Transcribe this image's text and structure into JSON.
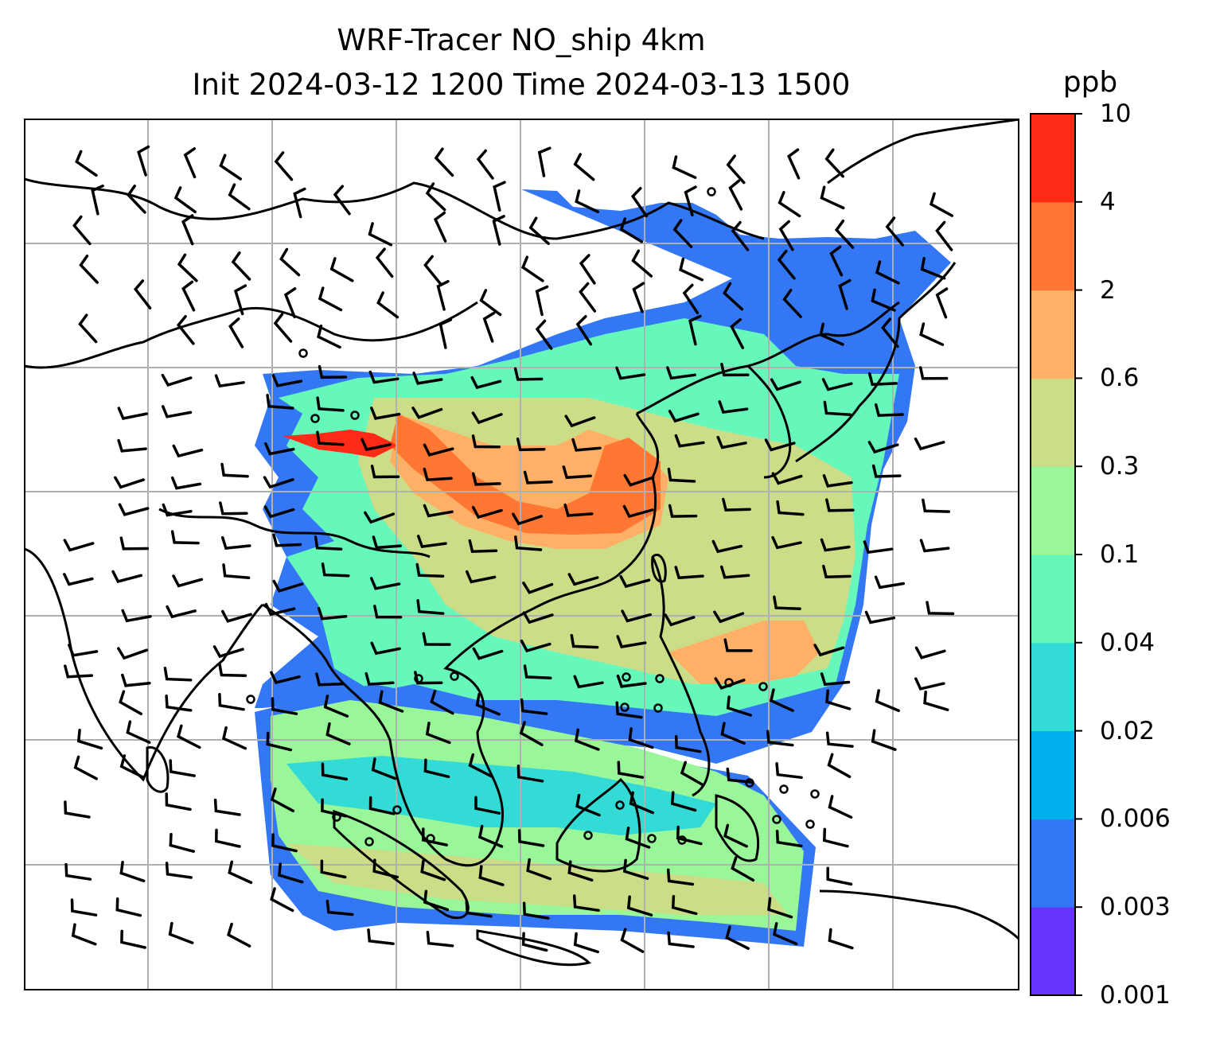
{
  "title": {
    "line1": "WRF-Tracer NO_ship 4km",
    "line2": "Init 2024-03-12 1200 Time 2024-03-13 1500"
  },
  "colorbar": {
    "unit": "ppb",
    "levels": [
      "0.001",
      "0.003",
      "0.006",
      "0.02",
      "0.04",
      "0.1",
      "0.3",
      "0.6",
      "2",
      "4",
      "10"
    ],
    "colors": [
      "#6633ff",
      "#3377f5",
      "#00b0ec",
      "#33dbd6",
      "#66f7bb",
      "#99f799",
      "#ccdd88",
      "#ffb066",
      "#ff7733",
      "#ff2b17"
    ]
  },
  "map": {
    "gridlines": "on",
    "gridline_color": "#b0b0b0",
    "coastline_color": "#000000",
    "wind_symbol": "wind-barbs",
    "no_data_color": "#ffffff"
  }
}
